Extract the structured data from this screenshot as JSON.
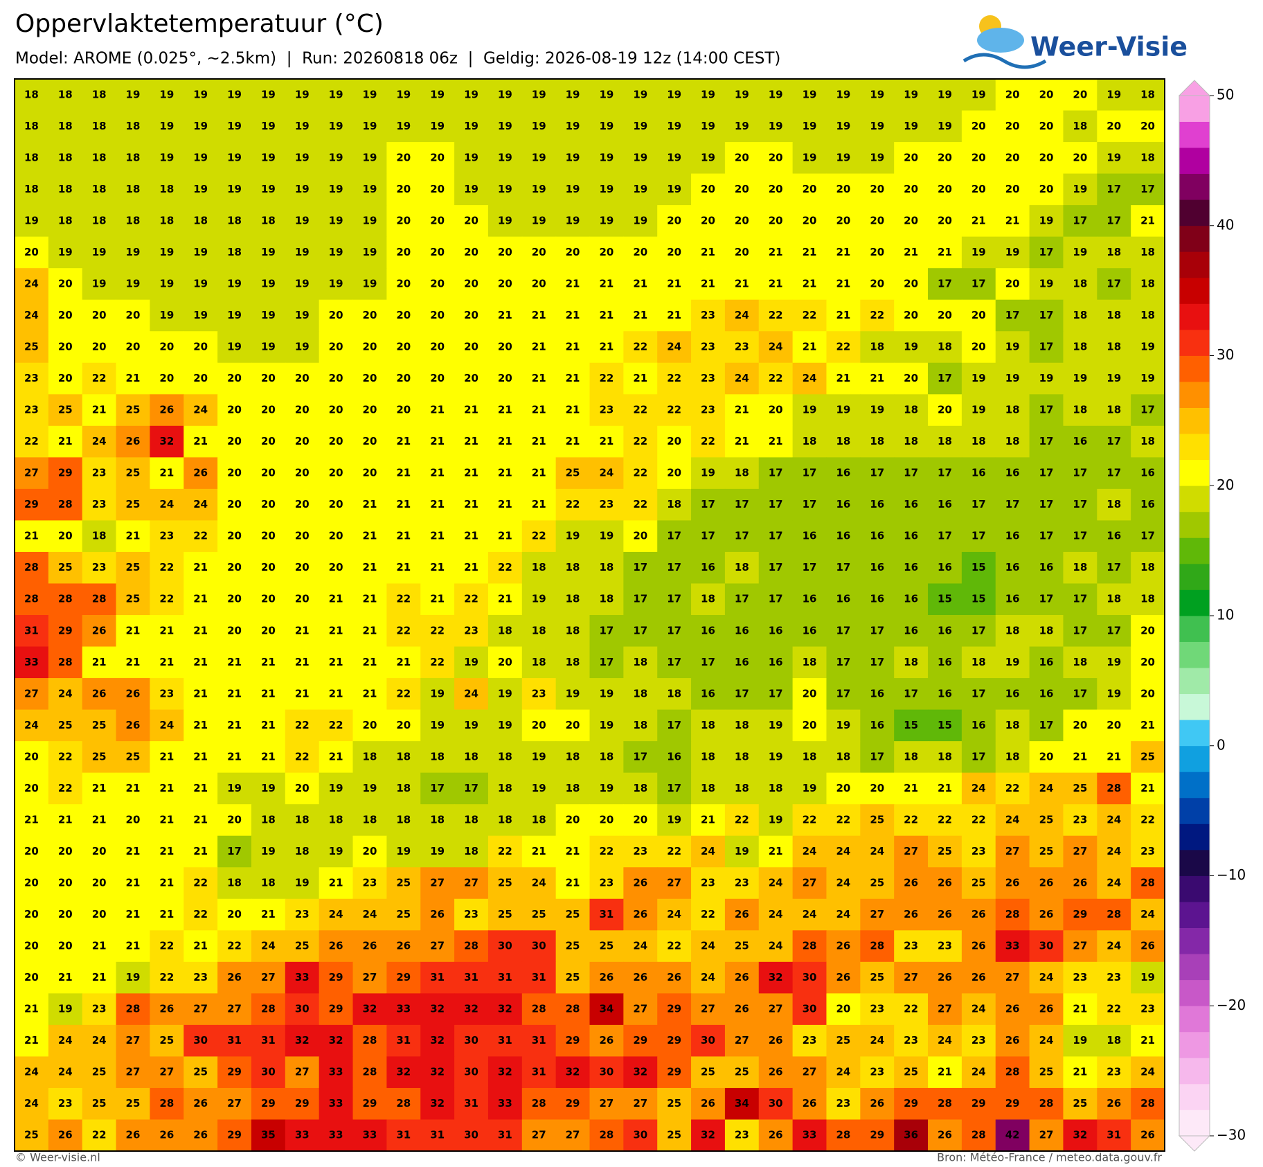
{
  "header": {
    "title": "Oppervlaktetemperatuur (°C)",
    "subtitle": "Model: AROME (0.025°, ~2.5km)  |  Run: 20260818 06z  |  Geldig: 2026-08-19 12z (14:00 CEST)",
    "logo": "Weer-Visie"
  },
  "map": {
    "grid": [
      [
        18,
        18,
        18,
        19,
        19,
        19,
        19,
        19,
        19,
        19,
        19,
        19,
        19,
        19,
        19,
        19,
        19,
        19,
        19,
        19,
        19,
        19,
        19,
        19,
        19,
        19,
        19,
        19,
        19,
        20,
        20,
        20,
        19,
        18
      ],
      [
        18,
        18,
        18,
        18,
        19,
        19,
        19,
        19,
        19,
        19,
        19,
        19,
        19,
        19,
        19,
        19,
        19,
        19,
        19,
        19,
        19,
        19,
        19,
        19,
        19,
        19,
        19,
        19,
        20,
        20,
        20,
        18,
        20,
        20
      ],
      [
        18,
        18,
        18,
        18,
        19,
        19,
        19,
        19,
        19,
        19,
        19,
        20,
        20,
        19,
        19,
        19,
        19,
        19,
        19,
        19,
        19,
        20,
        20,
        19,
        19,
        19,
        20,
        20,
        20,
        20,
        20,
        20,
        19,
        18
      ],
      [
        18,
        18,
        18,
        18,
        18,
        19,
        19,
        19,
        19,
        19,
        19,
        20,
        20,
        19,
        19,
        19,
        19,
        19,
        19,
        19,
        20,
        20,
        20,
        20,
        20,
        20,
        20,
        20,
        20,
        20,
        20,
        19,
        17,
        17
      ],
      [
        19,
        18,
        18,
        18,
        18,
        18,
        18,
        18,
        19,
        19,
        19,
        20,
        20,
        20,
        19,
        19,
        19,
        19,
        19,
        20,
        20,
        20,
        20,
        20,
        20,
        20,
        20,
        20,
        21,
        21,
        19,
        17,
        17,
        21
      ],
      [
        20,
        19,
        19,
        19,
        19,
        19,
        18,
        19,
        19,
        19,
        19,
        20,
        20,
        20,
        20,
        20,
        20,
        20,
        20,
        20,
        21,
        20,
        21,
        21,
        21,
        20,
        21,
        21,
        19,
        19,
        17,
        19,
        18,
        18
      ],
      [
        24,
        20,
        19,
        19,
        19,
        19,
        19,
        19,
        19,
        19,
        19,
        20,
        20,
        20,
        20,
        20,
        21,
        21,
        21,
        21,
        21,
        21,
        21,
        21,
        21,
        20,
        20,
        17,
        17,
        20,
        19,
        18,
        17,
        18
      ],
      [
        24,
        20,
        20,
        20,
        19,
        19,
        19,
        19,
        19,
        20,
        20,
        20,
        20,
        20,
        21,
        21,
        21,
        21,
        21,
        21,
        23,
        24,
        22,
        22,
        21,
        22,
        20,
        20,
        20,
        17,
        17,
        18,
        18,
        18
      ],
      [
        25,
        20,
        20,
        20,
        20,
        20,
        19,
        19,
        19,
        20,
        20,
        20,
        20,
        20,
        20,
        21,
        21,
        21,
        22,
        24,
        23,
        23,
        24,
        21,
        22,
        18,
        19,
        18,
        20,
        19,
        17,
        18,
        18,
        19
      ],
      [
        23,
        20,
        22,
        21,
        20,
        20,
        20,
        20,
        20,
        20,
        20,
        20,
        20,
        20,
        20,
        21,
        21,
        22,
        21,
        22,
        23,
        24,
        22,
        24,
        21,
        21,
        20,
        17,
        19,
        19,
        19,
        19,
        19,
        19
      ],
      [
        23,
        25,
        21,
        25,
        26,
        24,
        20,
        20,
        20,
        20,
        20,
        20,
        21,
        21,
        21,
        21,
        21,
        23,
        22,
        22,
        23,
        21,
        20,
        19,
        19,
        19,
        18,
        20,
        19,
        18,
        17,
        18,
        18,
        17
      ],
      [
        22,
        21,
        24,
        26,
        32,
        21,
        20,
        20,
        20,
        20,
        20,
        21,
        21,
        21,
        21,
        21,
        21,
        21,
        22,
        20,
        22,
        21,
        21,
        18,
        18,
        18,
        18,
        18,
        18,
        18,
        17,
        16,
        17,
        18
      ],
      [
        27,
        29,
        23,
        25,
        21,
        26,
        20,
        20,
        20,
        20,
        20,
        21,
        21,
        21,
        21,
        21,
        25,
        24,
        22,
        20,
        19,
        18,
        17,
        17,
        16,
        17,
        17,
        17,
        16,
        16,
        17,
        17,
        17,
        16
      ],
      [
        29,
        28,
        23,
        25,
        24,
        24,
        20,
        20,
        20,
        20,
        21,
        21,
        21,
        21,
        21,
        21,
        22,
        23,
        22,
        18,
        17,
        17,
        17,
        17,
        16,
        16,
        16,
        16,
        17,
        17,
        17,
        17,
        18,
        16
      ],
      [
        21,
        20,
        18,
        21,
        23,
        22,
        20,
        20,
        20,
        20,
        21,
        21,
        21,
        21,
        21,
        22,
        19,
        19,
        20,
        17,
        17,
        17,
        17,
        16,
        16,
        16,
        16,
        17,
        17,
        16,
        17,
        17,
        16,
        17
      ],
      [
        28,
        25,
        23,
        25,
        22,
        21,
        20,
        20,
        20,
        20,
        21,
        21,
        21,
        21,
        22,
        18,
        18,
        18,
        17,
        17,
        16,
        18,
        17,
        17,
        17,
        16,
        16,
        16,
        15,
        16,
        16,
        18,
        17,
        18
      ],
      [
        28,
        28,
        28,
        25,
        22,
        21,
        20,
        20,
        20,
        21,
        21,
        22,
        21,
        22,
        21,
        19,
        18,
        18,
        17,
        17,
        18,
        17,
        17,
        16,
        16,
        16,
        16,
        15,
        15,
        16,
        17,
        17,
        18,
        18
      ],
      [
        31,
        29,
        26,
        21,
        21,
        21,
        20,
        20,
        21,
        21,
        21,
        22,
        22,
        23,
        18,
        18,
        18,
        17,
        17,
        17,
        16,
        16,
        16,
        16,
        17,
        17,
        16,
        16,
        17,
        18,
        18,
        17,
        17,
        20
      ],
      [
        33,
        28,
        21,
        21,
        21,
        21,
        21,
        21,
        21,
        21,
        21,
        21,
        22,
        19,
        20,
        18,
        18,
        17,
        18,
        17,
        17,
        16,
        16,
        18,
        17,
        17,
        18,
        16,
        18,
        19,
        16,
        18,
        19,
        20
      ],
      [
        27,
        24,
        26,
        26,
        23,
        21,
        21,
        21,
        21,
        21,
        21,
        22,
        19,
        24,
        19,
        23,
        19,
        19,
        18,
        18,
        16,
        17,
        17,
        20,
        17,
        16,
        17,
        16,
        17,
        16,
        16,
        17,
        19,
        20
      ],
      [
        24,
        25,
        25,
        26,
        24,
        21,
        21,
        21,
        22,
        22,
        20,
        20,
        19,
        19,
        19,
        20,
        20,
        19,
        18,
        17,
        18,
        18,
        19,
        20,
        19,
        16,
        15,
        15,
        16,
        18,
        17,
        20,
        20,
        21
      ],
      [
        20,
        22,
        25,
        25,
        21,
        21,
        21,
        21,
        22,
        21,
        18,
        18,
        18,
        18,
        18,
        19,
        18,
        18,
        17,
        16,
        18,
        18,
        19,
        18,
        18,
        17,
        18,
        18,
        17,
        18,
        20,
        21,
        21,
        25
      ],
      [
        20,
        22,
        21,
        21,
        21,
        21,
        19,
        19,
        20,
        19,
        19,
        18,
        17,
        17,
        18,
        19,
        18,
        19,
        18,
        17,
        18,
        18,
        18,
        19,
        20,
        20,
        21,
        21,
        24,
        22,
        24,
        25,
        28,
        21
      ],
      [
        21,
        21,
        21,
        20,
        21,
        21,
        20,
        18,
        18,
        18,
        18,
        18,
        18,
        18,
        18,
        18,
        20,
        20,
        20,
        19,
        21,
        22,
        19,
        22,
        22,
        25,
        22,
        22,
        22,
        24,
        25,
        23,
        24,
        22
      ],
      [
        20,
        20,
        20,
        21,
        21,
        21,
        17,
        19,
        18,
        19,
        20,
        19,
        19,
        18,
        22,
        21,
        21,
        22,
        23,
        22,
        24,
        19,
        21,
        24,
        24,
        24,
        27,
        25,
        23,
        27,
        25,
        27,
        24,
        23
      ],
      [
        20,
        20,
        20,
        21,
        21,
        22,
        18,
        18,
        19,
        21,
        23,
        25,
        27,
        27,
        25,
        24,
        21,
        23,
        26,
        27,
        23,
        23,
        24,
        27,
        24,
        25,
        26,
        26,
        25,
        26,
        26,
        26,
        24,
        28
      ],
      [
        20,
        20,
        20,
        21,
        21,
        22,
        20,
        21,
        23,
        24,
        24,
        25,
        26,
        23,
        25,
        25,
        25,
        31,
        26,
        24,
        22,
        26,
        24,
        24,
        24,
        27,
        26,
        26,
        26,
        28,
        26,
        29,
        28,
        24
      ],
      [
        20,
        20,
        21,
        21,
        22,
        21,
        22,
        24,
        25,
        26,
        26,
        26,
        27,
        28,
        30,
        30,
        25,
        25,
        24,
        22,
        24,
        25,
        24,
        28,
        26,
        28,
        23,
        23,
        26,
        33,
        30,
        27,
        24,
        26
      ],
      [
        20,
        21,
        21,
        19,
        22,
        23,
        26,
        27,
        33,
        29,
        27,
        29,
        31,
        31,
        31,
        31,
        25,
        26,
        26,
        26,
        24,
        26,
        32,
        30,
        26,
        25,
        27,
        26,
        26,
        27,
        24,
        23,
        23,
        19
      ],
      [
        21,
        19,
        23,
        28,
        26,
        27,
        27,
        28,
        30,
        29,
        32,
        33,
        32,
        32,
        32,
        28,
        28,
        34,
        27,
        29,
        27,
        26,
        27,
        30,
        20,
        23,
        22,
        27,
        24,
        26,
        26,
        21,
        22,
        23
      ],
      [
        21,
        24,
        24,
        27,
        25,
        30,
        31,
        31,
        32,
        32,
        28,
        31,
        32,
        30,
        31,
        31,
        29,
        26,
        29,
        29,
        30,
        27,
        26,
        23,
        25,
        24,
        23,
        24,
        23,
        26,
        24,
        19,
        18,
        21
      ],
      [
        24,
        24,
        25,
        27,
        27,
        25,
        29,
        30,
        27,
        33,
        28,
        32,
        32,
        30,
        32,
        31,
        32,
        30,
        32,
        29,
        25,
        25,
        26,
        27,
        24,
        23,
        25,
        21,
        24,
        28,
        25,
        21,
        23,
        24
      ],
      [
        24,
        23,
        25,
        25,
        28,
        26,
        27,
        29,
        29,
        33,
        29,
        28,
        32,
        31,
        33,
        28,
        29,
        27,
        27,
        25,
        26,
        34,
        30,
        26,
        23,
        26,
        29,
        28,
        29,
        29,
        28,
        25,
        26,
        28
      ],
      [
        25,
        26,
        22,
        26,
        26,
        26,
        29,
        35,
        33,
        33,
        33,
        31,
        31,
        30,
        31,
        27,
        27,
        28,
        30,
        25,
        32,
        23,
        26,
        33,
        28,
        29,
        36,
        26,
        28,
        42,
        27,
        32,
        31,
        26
      ]
    ]
  },
  "colorbar": {
    "lim": [
      -30,
      50
    ],
    "ticks": [
      50,
      40,
      30,
      20,
      10,
      0,
      {
        "value": -10,
        "label": "−10"
      },
      {
        "value": -20,
        "label": "−20"
      },
      {
        "value": -30,
        "label": "−30"
      }
    ],
    "colors": [
      "#fde9f8",
      "#fbd4f3",
      "#f6b8ec",
      "#ee98e3",
      "#e078d8",
      "#c858c8",
      "#a840b8",
      "#8428a8",
      "#5c1490",
      "#3a0a70",
      "#1a0848",
      "#001880",
      "#0040a8",
      "#0070c8",
      "#10a0e0",
      "#40c8f4",
      "#c8f8d8",
      "#a0eaa8",
      "#70d878",
      "#40c050",
      "#00a020",
      "#30a818",
      "#60b808",
      "#a0c800",
      "#d0dc00",
      "#ffff00",
      "#ffe000",
      "#ffc000",
      "#ff9000",
      "#ff6000",
      "#f83010",
      "#e81010",
      "#c80000",
      "#a80008",
      "#800018",
      "#500030",
      "#800060",
      "#b000a0",
      "#e040d0",
      "#f8a0e4"
    ]
  },
  "footer": {
    "left": "© Weer-visie.nl",
    "right": "Bron: Météo-France / meteo.data.gouv.fr"
  }
}
